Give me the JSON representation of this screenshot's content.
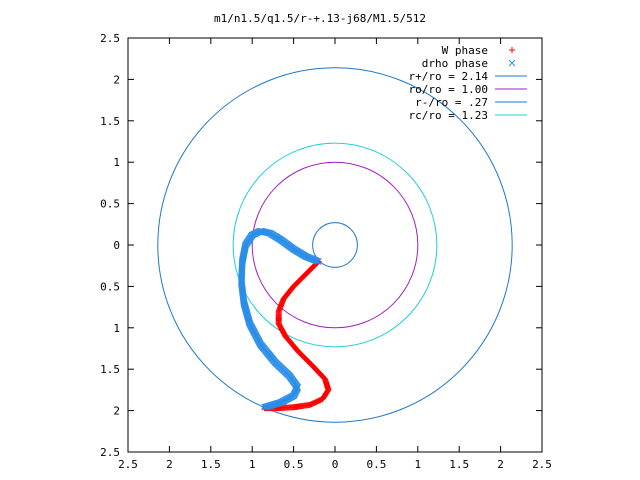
{
  "chart_data": {
    "type": "scatter",
    "title": "m1/n1.5/q1.5/r-+.13-j68/M1.5/512",
    "xlim": [
      -2.5,
      2.5
    ],
    "ylim": [
      -2.5,
      2.5
    ],
    "x_tick_labels": [
      "2.5",
      "2",
      "1.5",
      "1",
      "0.5",
      "0",
      "0.5",
      "1",
      "1.5",
      "2",
      "2.5"
    ],
    "y_tick_labels": [
      "2.5",
      "2",
      "1.5",
      "1",
      "0.5",
      "0",
      "0.5",
      "1",
      "1.5",
      "2",
      "2.5"
    ],
    "grid": false,
    "legend_position": "top-right",
    "circles": [
      {
        "name": "r+/ro = 2.14",
        "radius": 2.14,
        "color": "#1f78c8"
      },
      {
        "name": "ro/ro = 1.00",
        "radius": 1.0,
        "color": "#a020c0"
      },
      {
        "name": "r-/ro = .27",
        "radius": 0.27,
        "color": "#1f78c8"
      },
      {
        "name": "rc/ro = 1.23",
        "radius": 1.23,
        "color": "#20d0d8"
      }
    ],
    "series": [
      {
        "name": "W phase",
        "marker": "+",
        "color": "#ff0000",
        "points": [
          [
            -0.2,
            -0.2
          ],
          [
            -0.35,
            -0.35
          ],
          [
            -0.5,
            -0.5
          ],
          [
            -0.62,
            -0.65
          ],
          [
            -0.68,
            -0.8
          ],
          [
            -0.68,
            -0.95
          ],
          [
            -0.6,
            -1.1
          ],
          [
            -0.45,
            -1.28
          ],
          [
            -0.28,
            -1.45
          ],
          [
            -0.12,
            -1.62
          ],
          [
            -0.08,
            -1.75
          ],
          [
            -0.15,
            -1.86
          ],
          [
            -0.3,
            -1.93
          ],
          [
            -0.5,
            -1.96
          ],
          [
            -0.7,
            -1.97
          ],
          [
            -0.85,
            -1.97
          ]
        ]
      },
      {
        "name": "drho phase",
        "marker": "x",
        "color": "#2a8ee8",
        "points": [
          [
            -0.2,
            -0.2
          ],
          [
            -0.35,
            -0.14
          ],
          [
            -0.5,
            -0.05
          ],
          [
            -0.65,
            0.06
          ],
          [
            -0.78,
            0.14
          ],
          [
            -0.9,
            0.17
          ],
          [
            -1.0,
            0.12
          ],
          [
            -1.08,
            0.0
          ],
          [
            -1.12,
            -0.2
          ],
          [
            -1.13,
            -0.45
          ],
          [
            -1.1,
            -0.7
          ],
          [
            -1.03,
            -0.95
          ],
          [
            -0.9,
            -1.2
          ],
          [
            -0.72,
            -1.42
          ],
          [
            -0.55,
            -1.58
          ],
          [
            -0.45,
            -1.72
          ],
          [
            -0.5,
            -1.82
          ],
          [
            -0.65,
            -1.9
          ],
          [
            -0.85,
            -1.96
          ]
        ]
      }
    ]
  }
}
